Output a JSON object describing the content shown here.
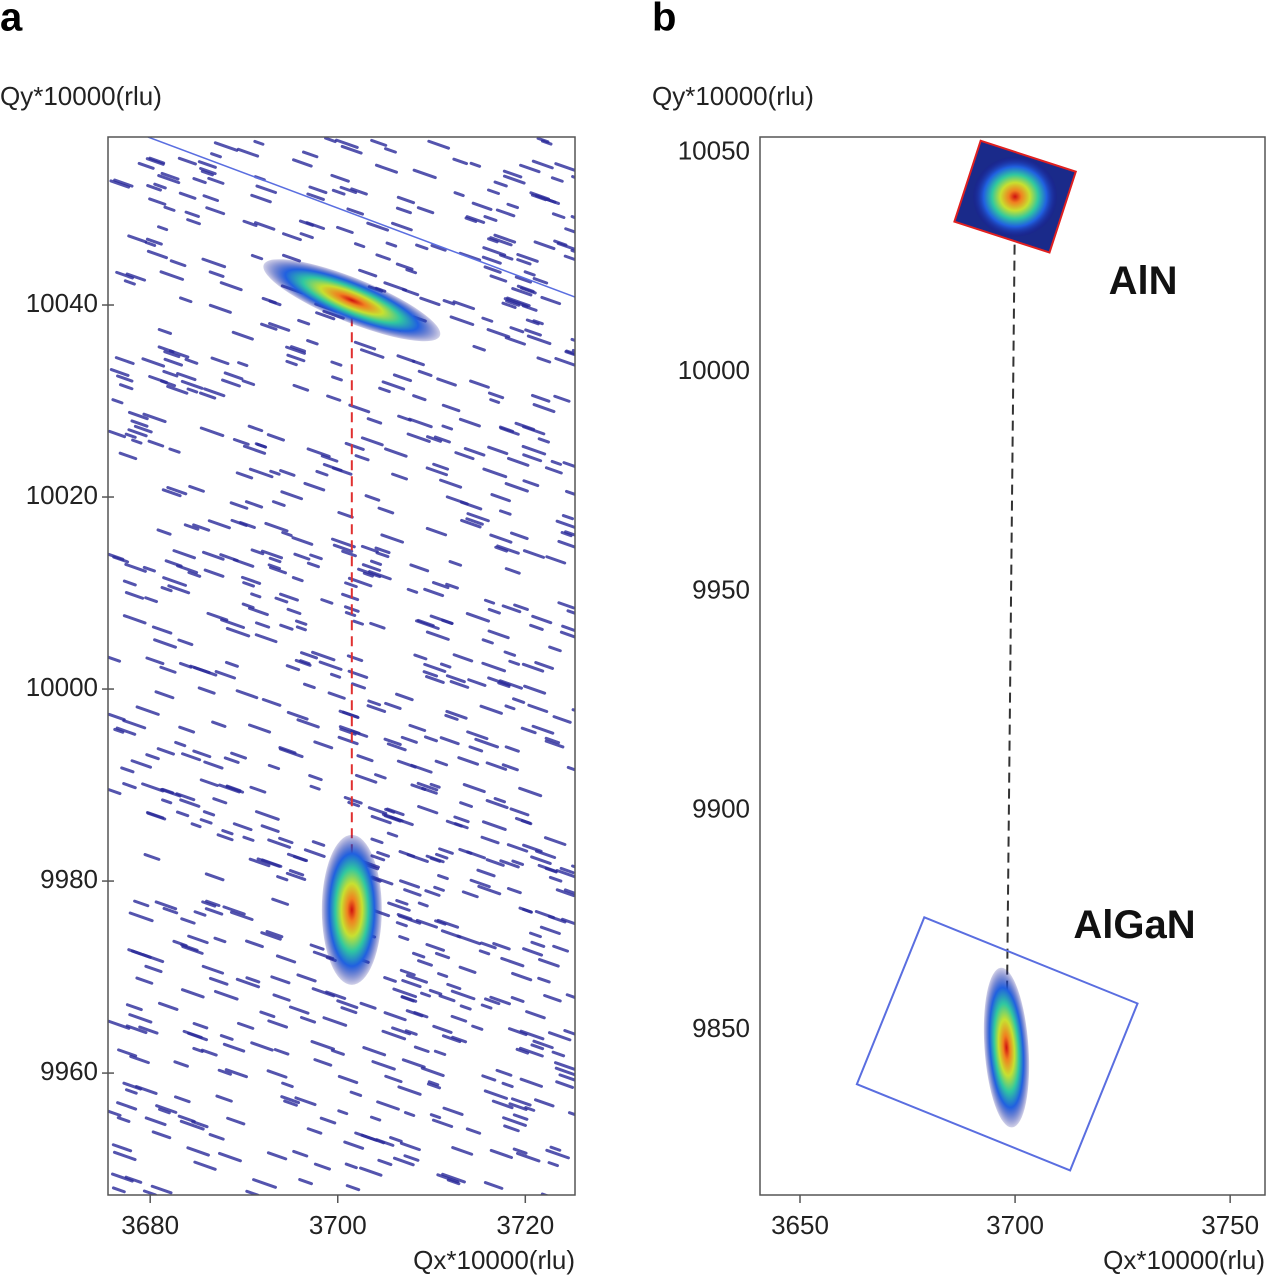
{
  "chart_data": [
    {
      "type": "map",
      "panel": "a",
      "ylabel": "Qy*10000(rlu)",
      "xlabel": "Qx*10000(rlu)",
      "xlim": [
        3675.5,
        3725.3
      ],
      "xticks": [
        3680,
        3700,
        3720
      ],
      "ylim": [
        9947.3,
        10057.5
      ],
      "yticks": [
        9960,
        9980,
        10000,
        10020,
        10040
      ],
      "peaks": [
        {
          "x": 3701.5,
          "y": 10040.5
        },
        {
          "x": 3701.5,
          "y": 9977
        }
      ]
    },
    {
      "type": "map",
      "panel": "b",
      "ylabel": "Qy*10000(rlu)",
      "xlabel": "Qx*10000(rlu)",
      "xlim": [
        3640.7,
        3758.1
      ],
      "xticks": [
        3650,
        3700,
        3750
      ],
      "ylim": [
        9812.4,
        10053.6
      ],
      "yticks": [
        9850,
        9900,
        9950,
        10000,
        10050
      ],
      "peaks": [
        {
          "x": 3700,
          "y": 10040,
          "label": "AlN"
        },
        {
          "x": 3698,
          "y": 9846,
          "label": "AlGaN"
        }
      ]
    }
  ]
}
